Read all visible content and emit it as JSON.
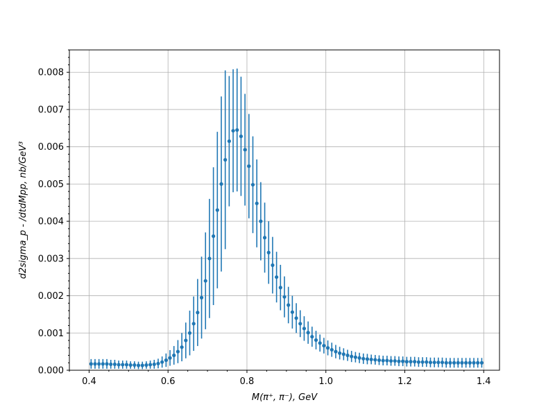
{
  "chart_data": {
    "type": "scatter",
    "title": "",
    "xlabel": "M(π⁺, π⁻), GeV",
    "ylabel": "d2sigma_p - /dtdMpp, nb/GeV³",
    "xlim": [
      0.35,
      1.44
    ],
    "ylim": [
      0,
      0.0086
    ],
    "grid": true,
    "x_ticks": [
      "0.4",
      "0.6",
      "0.8",
      "1.0",
      "1.2",
      "1.4"
    ],
    "y_ticks": [
      "0.000",
      "0.001",
      "0.002",
      "0.003",
      "0.004",
      "0.005",
      "0.006",
      "0.007",
      "0.008"
    ],
    "marker_color": "#1f77b4",
    "series": [
      {
        "x": [
          0.405,
          0.415,
          0.425,
          0.435,
          0.445,
          0.455,
          0.465,
          0.475,
          0.485,
          0.495,
          0.505,
          0.515,
          0.525,
          0.535,
          0.545,
          0.555,
          0.565,
          0.575,
          0.585,
          0.595,
          0.605,
          0.615,
          0.625,
          0.635,
          0.645,
          0.655,
          0.665,
          0.675,
          0.685,
          0.695,
          0.705,
          0.715,
          0.725,
          0.735,
          0.745,
          0.755,
          0.765,
          0.775,
          0.785,
          0.795,
          0.805,
          0.815,
          0.825,
          0.835,
          0.845,
          0.855,
          0.865,
          0.875,
          0.885,
          0.895,
          0.905,
          0.915,
          0.925,
          0.935,
          0.945,
          0.955,
          0.965,
          0.975,
          0.985,
          0.995,
          1.005,
          1.015,
          1.025,
          1.035,
          1.045,
          1.055,
          1.065,
          1.075,
          1.085,
          1.095,
          1.105,
          1.115,
          1.125,
          1.135,
          1.145,
          1.155,
          1.165,
          1.175,
          1.185,
          1.195,
          1.205,
          1.215,
          1.225,
          1.235,
          1.245,
          1.255,
          1.265,
          1.275,
          1.285,
          1.295,
          1.305,
          1.315,
          1.325,
          1.335,
          1.345,
          1.355,
          1.365,
          1.375,
          1.385,
          1.395
        ],
        "y": [
          0.00017,
          0.00017,
          0.00017,
          0.00017,
          0.00017,
          0.00016,
          0.00016,
          0.00015,
          0.00015,
          0.00015,
          0.00014,
          0.00014,
          0.00013,
          0.00013,
          0.00014,
          0.00015,
          0.00016,
          0.00018,
          0.00022,
          0.00027,
          0.00033,
          0.0004,
          0.0005,
          0.00062,
          0.0008,
          0.001,
          0.00125,
          0.00155,
          0.00195,
          0.0024,
          0.003,
          0.0036,
          0.0043,
          0.005,
          0.00565,
          0.00615,
          0.00643,
          0.00645,
          0.00628,
          0.00592,
          0.00548,
          0.00498,
          0.00448,
          0.004,
          0.00356,
          0.00316,
          0.00282,
          0.0025,
          0.00222,
          0.00197,
          0.00175,
          0.00156,
          0.0014,
          0.00125,
          0.00112,
          0.00101,
          0.0009,
          0.00081,
          0.00073,
          0.00066,
          0.0006,
          0.00055,
          0.0005,
          0.00046,
          0.00043,
          0.0004,
          0.00037,
          0.00035,
          0.00033,
          0.00031,
          0.0003,
          0.00029,
          0.00028,
          0.00027,
          0.00026,
          0.00026,
          0.00025,
          0.00025,
          0.00024,
          0.00024,
          0.00023,
          0.00023,
          0.00023,
          0.00022,
          0.00022,
          0.00022,
          0.00021,
          0.00021,
          0.00021,
          0.00021,
          0.0002,
          0.0002,
          0.0002,
          0.0002,
          0.0002,
          0.0002,
          0.0002,
          0.0002,
          0.0002,
          0.0002
        ],
        "yerr": [
          0.00013,
          0.00013,
          0.00013,
          0.00013,
          0.00013,
          0.00012,
          0.00012,
          0.00011,
          0.00011,
          0.00011,
          0.0001,
          0.0001,
          0.0001,
          0.0001,
          0.0001,
          0.00011,
          0.00012,
          0.00013,
          0.00015,
          0.00018,
          0.00021,
          0.00025,
          0.00031,
          0.00038,
          0.00048,
          0.0006,
          0.00073,
          0.0009,
          0.0011,
          0.0013,
          0.0016,
          0.00185,
          0.0021,
          0.00235,
          0.0024,
          0.00175,
          0.00165,
          0.00165,
          0.0016,
          0.0015,
          0.0014,
          0.0013,
          0.00118,
          0.00105,
          0.00094,
          0.00084,
          0.00076,
          0.00068,
          0.00061,
          0.00055,
          0.00049,
          0.00044,
          0.0004,
          0.00036,
          0.00033,
          0.0003,
          0.00027,
          0.00025,
          0.00023,
          0.00021,
          0.0002,
          0.00019,
          0.00018,
          0.00017,
          0.00016,
          0.00015,
          0.00015,
          0.00014,
          0.00014,
          0.00014,
          0.00014,
          0.00013,
          0.00013,
          0.00013,
          0.00013,
          0.00013,
          0.00013,
          0.00013,
          0.00013,
          0.00013,
          0.00013,
          0.00013,
          0.00013,
          0.00013,
          0.00013,
          0.00013,
          0.00013,
          0.00013,
          0.00013,
          0.00013,
          0.00013,
          0.00013,
          0.00013,
          0.00013,
          0.00013,
          0.00013,
          0.00013,
          0.00013,
          0.00013,
          0.00013
        ]
      }
    ]
  }
}
